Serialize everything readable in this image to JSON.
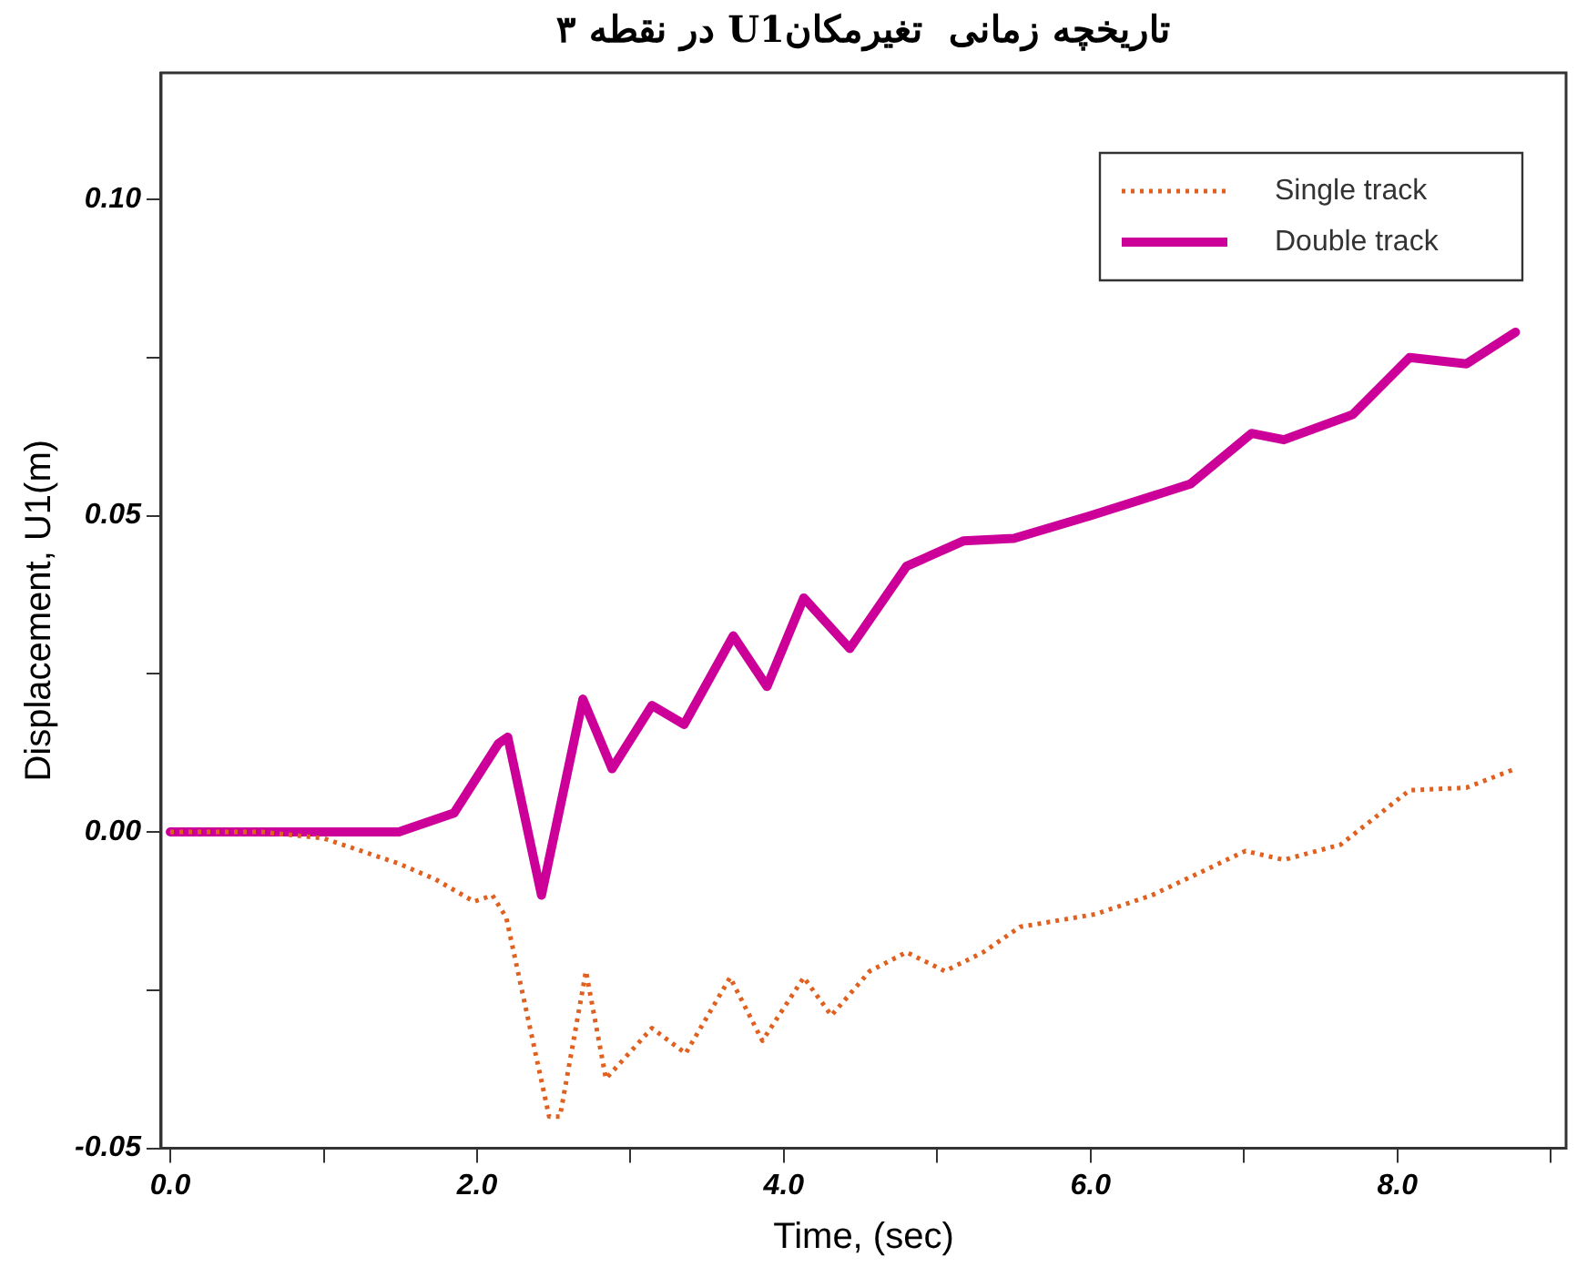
{
  "chart_data": {
    "type": "line",
    "title": "تاریخچه زمانی  تغیرمکانU1 در نقطه ۳",
    "xlabel": "Time, (sec)",
    "ylabel": "Displacement, U1(m)",
    "xlim": [
      -0.06,
      9.1
    ],
    "ylim": [
      -0.05,
      0.12
    ],
    "xticks": [
      {
        "value": 0,
        "label": "0.0"
      },
      {
        "value": 1,
        "label": null
      },
      {
        "value": 2,
        "label": "2.0"
      },
      {
        "value": 3,
        "label": null
      },
      {
        "value": 4,
        "label": "4.0"
      },
      {
        "value": 5,
        "label": null
      },
      {
        "value": 6,
        "label": "6.0"
      },
      {
        "value": 7,
        "label": null
      },
      {
        "value": 8,
        "label": "8.0"
      },
      {
        "value": 9,
        "label": null
      }
    ],
    "yticks": [
      {
        "value": -0.05,
        "label": "-0.05"
      },
      {
        "value": -0.025,
        "label": null
      },
      {
        "value": 0,
        "label": "0.00"
      },
      {
        "value": 0.025,
        "label": null
      },
      {
        "value": 0.05,
        "label": "0.05"
      },
      {
        "value": 0.075,
        "label": null
      },
      {
        "value": 0.1,
        "label": "0.10"
      }
    ],
    "grid": false,
    "legend": "top right",
    "marker": "none",
    "series": [
      {
        "name": "Single track",
        "color": "#e06020",
        "line_style": "dotted",
        "x": [
          0,
          0.6,
          1.0,
          1.49,
          1.73,
          1.98,
          2.1,
          2.19,
          2.47,
          2.54,
          2.71,
          2.84,
          3.14,
          3.36,
          3.65,
          3.86,
          4.13,
          4.31,
          4.56,
          4.8,
          5.05,
          5.3,
          5.54,
          6.03,
          6.4,
          7.01,
          7.26,
          7.63,
          8.08,
          8.45,
          8.77
        ],
        "values": [
          0,
          0,
          -0.001,
          -0.005,
          -0.0075,
          -0.011,
          -0.01,
          -0.0135,
          -0.045,
          -0.045,
          -0.022,
          -0.039,
          -0.031,
          -0.035,
          -0.023,
          -0.033,
          -0.023,
          -0.029,
          -0.022,
          -0.019,
          -0.022,
          -0.019,
          -0.015,
          -0.013,
          -0.01,
          -0.003,
          -0.0044,
          -0.002,
          0.0066,
          0.007,
          0.01
        ]
      },
      {
        "name": "Double track",
        "color": "#cc0099",
        "line_style": "solid",
        "x": [
          0,
          1.49,
          1.85,
          2.14,
          2.2,
          2.42,
          2.69,
          2.88,
          3.14,
          3.35,
          3.67,
          3.89,
          4.13,
          4.43,
          4.8,
          5.17,
          5.5,
          6.0,
          6.65,
          7.05,
          7.26,
          7.71,
          8.08,
          8.45,
          8.77
        ],
        "values": [
          0,
          0,
          0.003,
          0.014,
          0.015,
          -0.01,
          0.021,
          0.01,
          0.02,
          0.017,
          0.031,
          0.023,
          0.037,
          0.029,
          0.042,
          0.046,
          0.0464,
          0.05,
          0.055,
          0.063,
          0.062,
          0.066,
          0.075,
          0.074,
          0.079
        ]
      }
    ]
  }
}
